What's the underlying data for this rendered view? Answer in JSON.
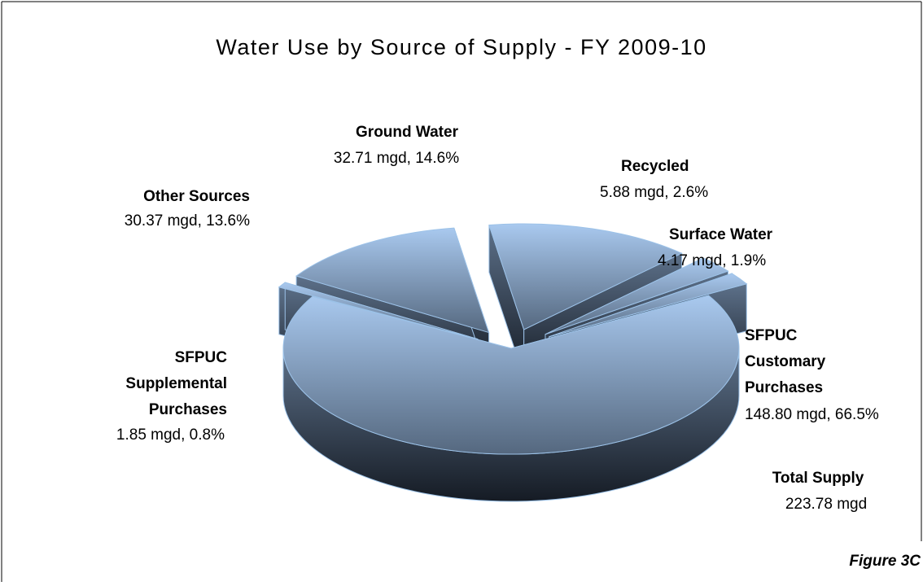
{
  "chart_data": {
    "type": "pie3d",
    "title": "Water Use by Source of Supply - FY 2009-10",
    "categories": [
      "SFPUC Customary Purchases",
      "SFPUC Supplemental Purchases",
      "Other Sources",
      "Ground Water",
      "Recycled",
      "Surface Water"
    ],
    "values": [
      148.8,
      1.85,
      30.37,
      32.71,
      5.88,
      4.17
    ],
    "value_labels": [
      "148.80 mgd, 66.5%",
      "1.85 mgd, 0.8%",
      "30.37 mgd, 13.6%",
      "32.71 mgd, 14.6%",
      "5.88 mgd, 2.6%",
      "4.17 mgd, 1.9%"
    ],
    "total_label": "Total Supply",
    "total": 223.78,
    "total_value_label": "223.78 mgd",
    "annotation": "Figure 3C",
    "colors": {
      "top_light": "#a9c9ef",
      "top_dark": "#55687f",
      "side_light": "#5d718a",
      "side_dark": "#151b24",
      "edge": "#9cc2e8"
    }
  }
}
